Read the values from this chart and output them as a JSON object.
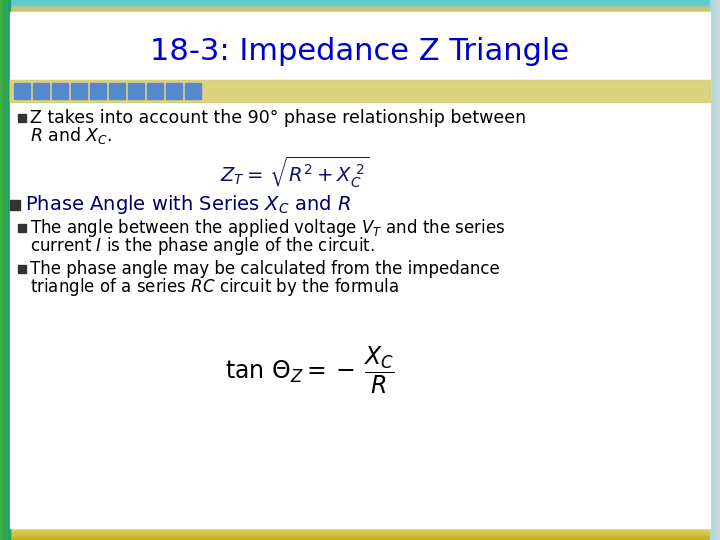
{
  "title": "18-3: Impedance Z Triangle",
  "title_color": "#0000CC",
  "title_fontsize": 22,
  "bg_color": "#FFFFFF",
  "text_color": "#000000",
  "dark_blue": "#000066",
  "bullet_sq_color": "#0055AA",
  "header_squares_color": "#5599CC",
  "formula1": "$Z_T =\\, \\sqrt{R^2 + X_C^{\\ 2}}$",
  "formula2": "$\\tan\\,\\Theta_Z = -\\,\\dfrac{X_C}{R}$"
}
